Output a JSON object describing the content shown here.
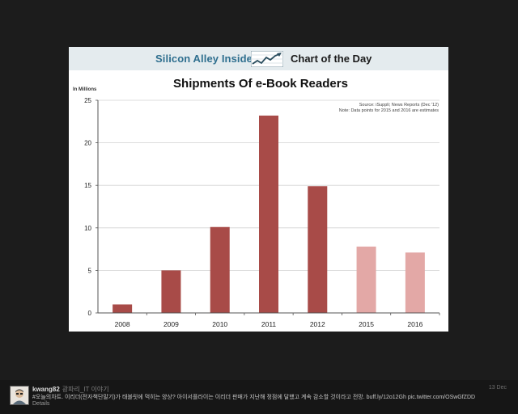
{
  "banner": {
    "brand": "Silicon Alley Insider",
    "tag": "Chart of the Day",
    "logo_icon": "trend-chart-icon"
  },
  "chart_data": {
    "type": "bar",
    "title": "Shipments Of e-Book Readers",
    "unit_label": "In Millions",
    "source": "Source: iSuppli; News Reports (Dec '12)",
    "note": "Note: Data points for 2015 and 2016 are estimates",
    "categories": [
      "2008",
      "2009",
      "2010",
      "2011",
      "2012",
      "2015",
      "2016"
    ],
    "values": [
      1.0,
      5.0,
      10.1,
      23.2,
      14.9,
      7.8,
      7.1
    ],
    "estimate": [
      false,
      false,
      false,
      false,
      false,
      true,
      true
    ],
    "ylim": [
      0,
      25
    ],
    "yticks": [
      0,
      5,
      10,
      15,
      20,
      25
    ],
    "grid": true,
    "colors": {
      "actual": "#a84b48",
      "estimate": "#e3a8a6",
      "grid": "#d2d2d2",
      "axis": "#555555"
    }
  },
  "tweet": {
    "name": "kwang82",
    "handle": "광파리_IT 이야기",
    "text": "#오늘의차트. 이리더(전자책단말기)가 태블릿에 먹히는 양상? 아이서플라이는 이리더 판매가 지난해 정점에 달했고 계속 감소할 것이라고 전망. buff.ly/12o12Gh pic.twitter.com/OSwGfZDD",
    "details": "Details",
    "date": "13 Dec"
  }
}
